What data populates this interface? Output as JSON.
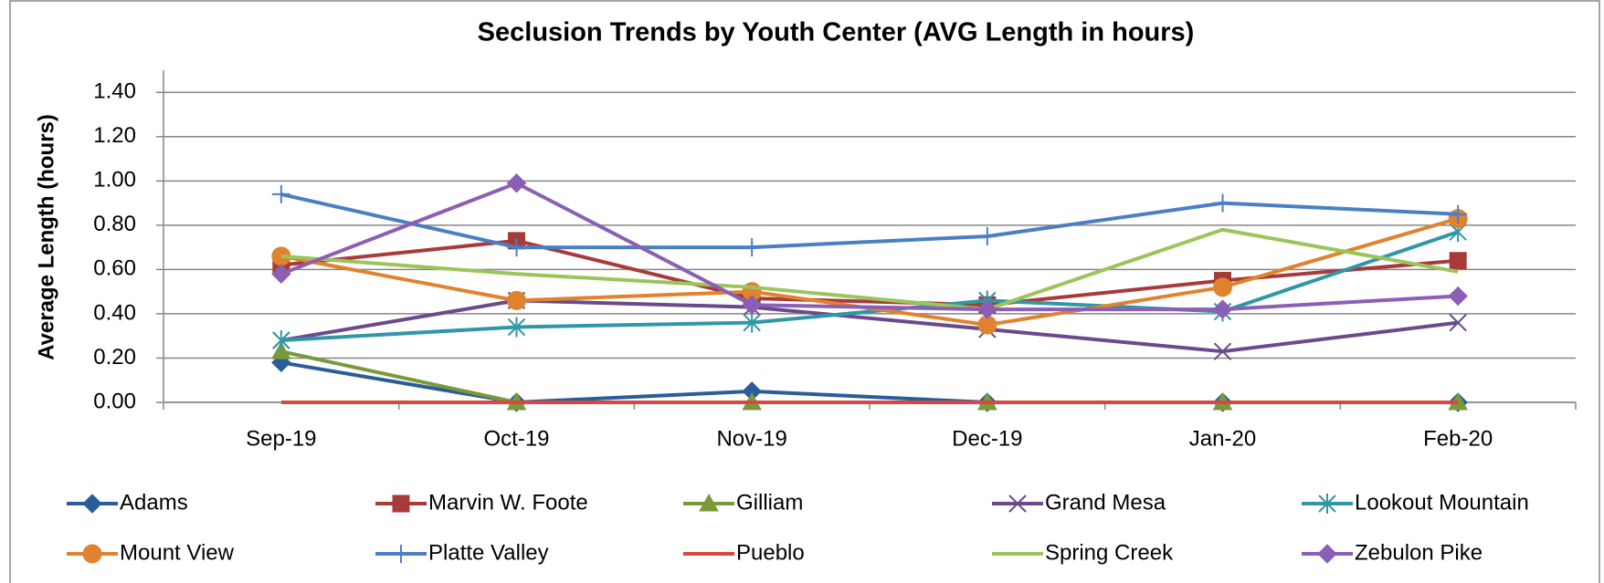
{
  "chart_data": {
    "type": "line",
    "title": "Seclusion Trends by Youth Center (AVG Length in hours)",
    "y_label": "Average Length (hours)",
    "categories": [
      "Sep-19",
      "Oct-19",
      "Nov-19",
      "Dec-19",
      "Jan-20",
      "Feb-20"
    ],
    "ylim": [
      0,
      1.5
    ],
    "yticks": [
      {
        "value": 0,
        "label": "0.00"
      },
      {
        "value": 0.2,
        "label": "0.20"
      },
      {
        "value": 0.4,
        "label": "0.40"
      },
      {
        "value": 0.6,
        "label": "0.60"
      },
      {
        "value": 0.8,
        "label": "0.80"
      },
      {
        "value": 1.0,
        "label": "1.00"
      },
      {
        "value": 1.2,
        "label": "1.20"
      },
      {
        "value": 1.4,
        "label": "1.40"
      }
    ],
    "grid": true,
    "legend": "bottom",
    "series": [
      {
        "name": "Adams",
        "color": "#2b5c9c",
        "marker": "diamond",
        "values": [
          0.18,
          0,
          0.05,
          0,
          0,
          0
        ]
      },
      {
        "name": "Marvin W. Foote",
        "color": "#a83a3a",
        "marker": "square",
        "values": [
          0.62,
          0.73,
          0.47,
          0.44,
          0.55,
          0.64
        ]
      },
      {
        "name": "Gilliam",
        "color": "#7a9a3a",
        "marker": "triangle",
        "values": [
          0.23,
          0,
          0,
          0,
          0,
          0
        ]
      },
      {
        "name": "Grand Mesa",
        "color": "#6a4a8c",
        "marker": "x",
        "values": [
          0.28,
          0.46,
          0.43,
          0.33,
          0.23,
          0.36
        ]
      },
      {
        "name": "Lookout Mountain",
        "color": "#3097a8",
        "marker": "asterisk",
        "values": [
          0.28,
          0.34,
          0.36,
          0.46,
          0.41,
          0.77
        ]
      },
      {
        "name": "Mount View",
        "color": "#e0822e",
        "marker": "circle",
        "values": [
          0.66,
          0.46,
          0.5,
          0.35,
          0.52,
          0.83
        ]
      },
      {
        "name": "Platte Valley",
        "color": "#4a7fc4",
        "marker": "plus",
        "values": [
          0.94,
          0.7,
          0.7,
          0.75,
          0.9,
          0.85
        ]
      },
      {
        "name": "Pueblo",
        "color": "#d9473f",
        "marker": "none",
        "values": [
          0,
          0,
          0,
          0,
          0,
          0
        ]
      },
      {
        "name": "Spring Creek",
        "color": "#9bc45a",
        "marker": "none",
        "values": [
          0.66,
          0.58,
          0.52,
          0.42,
          0.78,
          0.59
        ]
      },
      {
        "name": "Zebulon Pike",
        "color": "#8a5fb5",
        "marker": "diamond",
        "values": [
          0.58,
          0.99,
          0.44,
          0.42,
          0.42,
          0.48
        ]
      }
    ]
  }
}
